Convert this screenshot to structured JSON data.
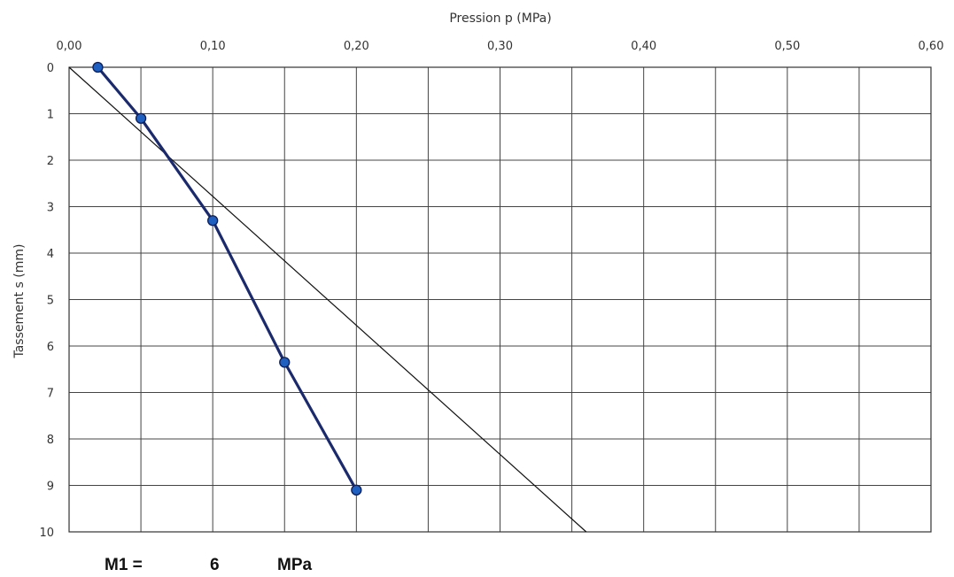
{
  "chart_data": {
    "type": "line",
    "x_axis": {
      "label": "Pression p (MPa)",
      "position": "top",
      "range": [
        0,
        0.6
      ],
      "ticks": [
        0,
        0.1,
        0.2,
        0.3,
        0.4,
        0.5,
        0.6
      ],
      "tick_labels": [
        "0,00",
        "0,10",
        "0,20",
        "0,30",
        "0,40",
        "0,50",
        "0,60"
      ],
      "minor_step": 0.05
    },
    "y_axis": {
      "label": "Tassement s (mm)",
      "range": [
        0,
        10
      ],
      "inverted": true,
      "ticks": [
        0,
        1,
        2,
        3,
        4,
        5,
        6,
        7,
        8,
        9,
        10
      ],
      "tick_labels": [
        "0",
        "1",
        "2",
        "3",
        "4",
        "5",
        "6",
        "7",
        "8",
        "9",
        "10"
      ]
    },
    "grid": true,
    "series": [
      {
        "x": [
          0.02,
          0.05,
          0.1,
          0.15,
          0.2
        ],
        "y": [
          0.0,
          1.1,
          3.3,
          6.35,
          9.1
        ],
        "color": "#1a2a6c",
        "marker_color": "#1f5fbf",
        "markers": true
      },
      {
        "x": [
          0.0,
          0.36
        ],
        "y": [
          0.0,
          10.0
        ],
        "color": "#111111",
        "markers": false
      }
    ]
  },
  "result": {
    "label": "M1 =",
    "value": "6",
    "unit": "MPa"
  }
}
